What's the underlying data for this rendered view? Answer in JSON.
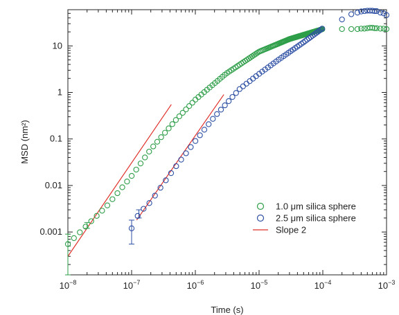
{
  "chart_data": {
    "type": "scatter",
    "title": "",
    "xlabel": "Time (s)",
    "ylabel": "MSD (nm²)",
    "x_scale": "log",
    "y_scale": "log",
    "xlim": [
      1e-08,
      0.001
    ],
    "ylim": [
      0.00012,
      60
    ],
    "x_ticks": [
      {
        "value": 1e-08,
        "mantissa": "10",
        "exponent": "−8"
      },
      {
        "value": 1e-07,
        "mantissa": "10",
        "exponent": "−7"
      },
      {
        "value": 1e-06,
        "mantissa": "10",
        "exponent": "−6"
      },
      {
        "value": 1e-05,
        "mantissa": "10",
        "exponent": "−5"
      },
      {
        "value": 0.0001,
        "mantissa": "10",
        "exponent": "−4"
      },
      {
        "value": 0.001,
        "mantissa": "10",
        "exponent": "−3"
      }
    ],
    "y_ticks": [
      {
        "value": 0.001,
        "label": "0.001"
      },
      {
        "value": 0.01,
        "label": "0.01"
      },
      {
        "value": 0.1,
        "label": "0.1"
      },
      {
        "value": 1,
        "label": "1"
      },
      {
        "value": 10,
        "label": "10"
      }
    ],
    "legend_position": "bottom-right",
    "series": [
      {
        "name": "1.0 μm silica sphere",
        "color": "#2e9e49",
        "marker": "open-circle",
        "sampled_trend": {
          "x_range": [
            1e-08,
            0.0001
          ],
          "anchors": [
            [
              1e-08,
              0.00055
            ],
            [
              2e-08,
              0.0014
            ],
            [
              4e-08,
              0.0035
            ],
            [
              1e-07,
              0.016
            ],
            [
              2e-07,
              0.06
            ],
            [
              5e-07,
              0.26
            ],
            [
              1e-06,
              0.7
            ],
            [
              3e-06,
              2.5
            ],
            [
              1e-05,
              7.5
            ],
            [
              3e-05,
              14
            ],
            [
              0.0001,
              23
            ]
          ]
        },
        "extra_points": [
          [
            0.0002,
            23
          ],
          [
            0.00028,
            23
          ],
          [
            0.00035,
            23
          ],
          [
            0.0004,
            23.5
          ],
          [
            0.00045,
            23.5
          ],
          [
            0.0005,
            24
          ],
          [
            0.00055,
            24.5
          ],
          [
            0.0006,
            24.5
          ],
          [
            0.00065,
            24
          ],
          [
            0.0007,
            24
          ],
          [
            0.0008,
            23.5
          ],
          [
            0.0009,
            23.5
          ],
          [
            0.001,
            23
          ]
        ],
        "error_bars": [
          {
            "x": 1e-08,
            "y": 0.00055,
            "low": 0.00012,
            "high": 0.0009
          },
          {
            "x": 2e-08,
            "y": 0.0014,
            "low": 0.0012,
            "high": 0.0016
          }
        ]
      },
      {
        "name": "2.5 μm silica sphere",
        "color": "#2d4fa3",
        "marker": "open-circle",
        "sampled_trend": {
          "x_range": [
            1e-07,
            0.0001
          ],
          "anchors": [
            [
              1e-07,
              0.0012
            ],
            [
              1.3e-07,
              0.0025
            ],
            [
              2e-07,
              0.0045
            ],
            [
              3e-07,
              0.01
            ],
            [
              5e-07,
              0.026
            ],
            [
              1e-06,
              0.09
            ],
            [
              2e-06,
              0.3
            ],
            [
              5e-06,
              1.2
            ],
            [
              1e-05,
              2.5
            ],
            [
              2e-05,
              5
            ],
            [
              5e-05,
              12
            ],
            [
              0.0001,
              24
            ]
          ]
        },
        "extra_points": [
          [
            0.0002,
            37
          ],
          [
            0.00028,
            48
          ],
          [
            0.00035,
            52
          ],
          [
            0.0004,
            55
          ],
          [
            0.00045,
            56
          ],
          [
            0.0005,
            57
          ],
          [
            0.00055,
            57
          ],
          [
            0.0006,
            57
          ],
          [
            0.00065,
            56
          ],
          [
            0.0007,
            56
          ],
          [
            0.0008,
            52
          ],
          [
            0.0009,
            50
          ],
          [
            0.001,
            46
          ]
        ],
        "error_bars": [
          {
            "x": 1e-07,
            "y": 0.0012,
            "low": 0.00055,
            "high": 0.0018
          },
          {
            "x": 1.3e-07,
            "y": 0.0025,
            "low": 0.002,
            "high": 0.003
          }
        ]
      },
      {
        "name": "Slope 2",
        "color": "#e0302a",
        "marker": "line",
        "lines": [
          {
            "x": [
              1e-08,
              4.2e-07
            ],
            "y": [
              0.0003,
              0.55
            ]
          },
          {
            "x": [
              1.2e-07,
              2.8e-06
            ],
            "y": [
              0.0018,
              0.9
            ]
          }
        ]
      }
    ]
  }
}
